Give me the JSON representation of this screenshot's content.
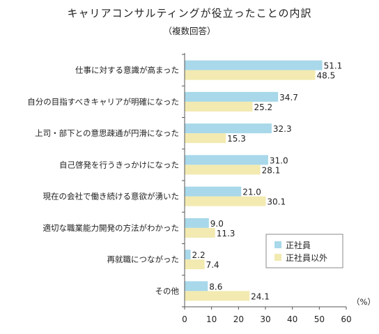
{
  "chart_data": {
    "type": "bar",
    "orientation": "horizontal",
    "title": "キャリアコンサルティングが役立ったことの内訳",
    "subtitle": "（複数回答）",
    "unit_label": "（%）",
    "categories": [
      "仕事に対する意識が高まった",
      "自分の目指すべきキャリアが明確になった",
      "上司・部下との意思疎通が円滑になった",
      "自己啓発を行うきっかけになった",
      "現在の会社で働き続ける意欲が湧いた",
      "適切な職業能力開発の方法がわかった",
      "再就職につながった",
      "その他"
    ],
    "series": [
      {
        "name": "正社員",
        "color": "#a8d8ea",
        "values": [
          51.1,
          34.7,
          32.3,
          31.0,
          21.0,
          9.0,
          2.2,
          8.6
        ],
        "labels": [
          "51.1",
          "34.7",
          "32.3",
          "31.0",
          "21.0",
          "9.0",
          "2.2",
          "8.6"
        ]
      },
      {
        "name": "正社員以外",
        "color": "#f2eab0",
        "values": [
          48.5,
          25.2,
          15.3,
          28.1,
          30.1,
          11.3,
          7.4,
          24.1
        ],
        "labels": [
          "48.5",
          "25.2",
          "15.3",
          "28.1",
          "30.1",
          "11.3",
          "7.4",
          "24.1"
        ]
      }
    ],
    "xlim": [
      0,
      60
    ],
    "xticks": [
      "0",
      "10",
      "20",
      "30",
      "40",
      "50",
      "60"
    ],
    "grid": false,
    "legend_position": "bottom-right"
  }
}
